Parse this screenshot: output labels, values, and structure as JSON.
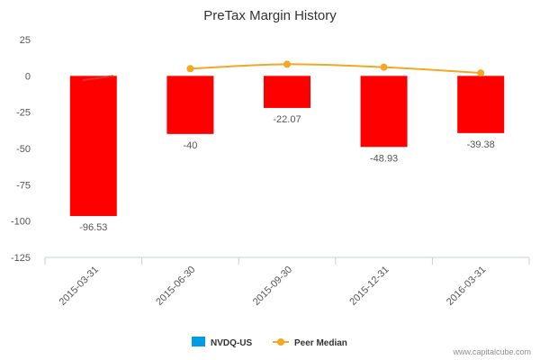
{
  "chart_data": {
    "type": "bar",
    "title": "PreTax Margin History",
    "categories": [
      "2015-03-31",
      "2015-06-30",
      "2015-09-30",
      "2015-12-31",
      "2016-03-31"
    ],
    "series": [
      {
        "name": "NVDQ-US",
        "type": "bar",
        "values": [
          -96.53,
          -40,
          -22.07,
          -48.93,
          -39.38
        ],
        "data_labels": [
          "-96.53",
          "-40",
          "-22.07",
          "-48.93",
          "-39.38"
        ],
        "color": "#ff0000",
        "legend_color": "#0099e6"
      },
      {
        "name": "Peer Median",
        "type": "line",
        "values": [
          null,
          5,
          8,
          6,
          2
        ],
        "color": "#f5a623"
      }
    ],
    "ylim": [
      -125,
      25
    ],
    "yticks": [
      25,
      0,
      -25,
      -50,
      -75,
      -100,
      -125
    ],
    "ytick_labels": [
      "25",
      "0",
      "-25",
      "-50",
      "-75",
      "-100",
      "-125"
    ],
    "xlabel": "",
    "ylabel": "",
    "legend_position": "bottom",
    "grid": false
  },
  "credit": "www.capitalcube.com"
}
